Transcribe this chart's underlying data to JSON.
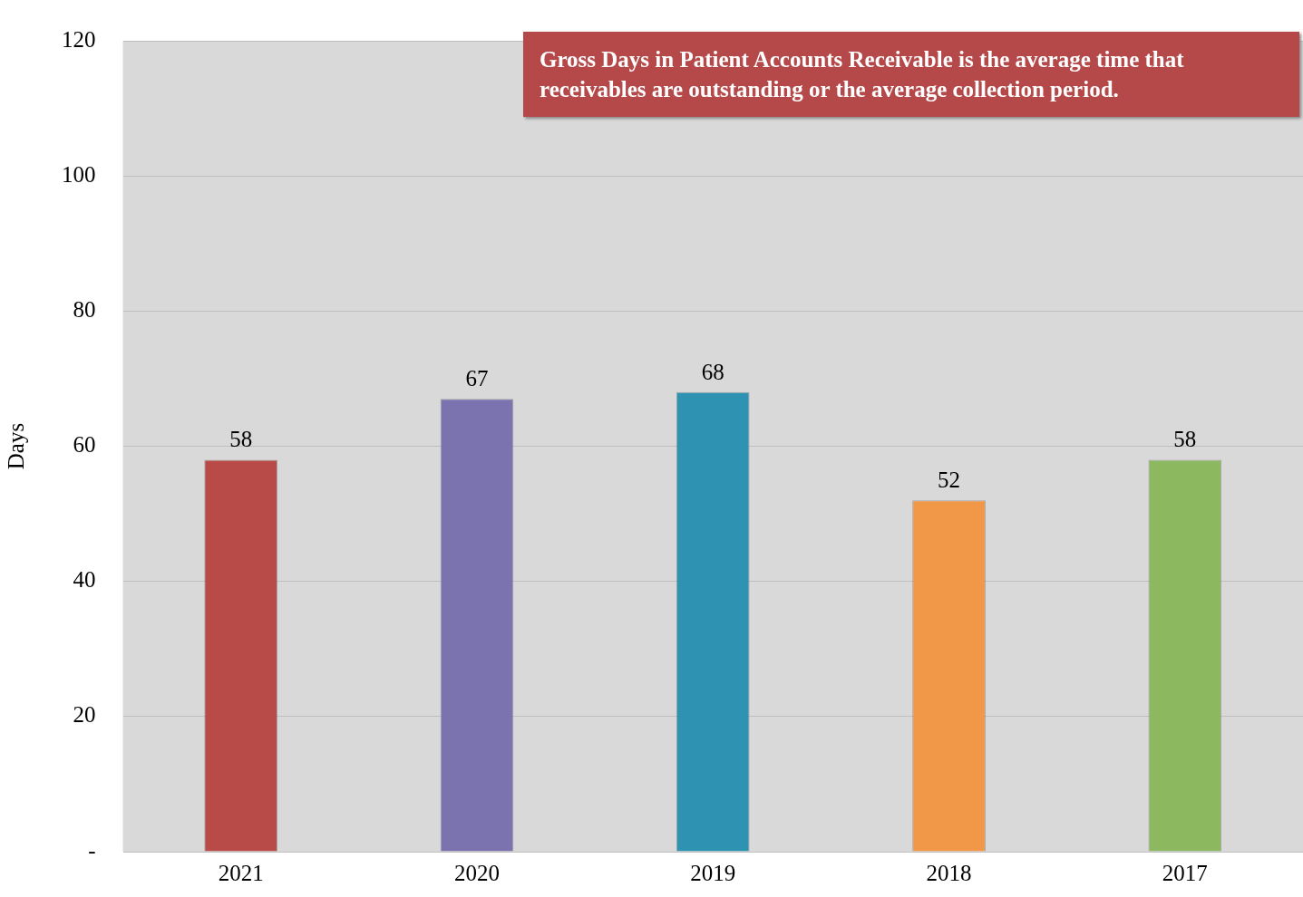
{
  "chart_data": {
    "type": "bar",
    "ylabel": "Days",
    "categories": [
      "2021",
      "2020",
      "2019",
      "2018",
      "2017"
    ],
    "values": [
      58,
      67,
      68,
      52,
      58
    ],
    "colors": [
      "#b84a47",
      "#7b73b0",
      "#2e93b2",
      "#f09848",
      "#8cb860"
    ],
    "ylim": [
      0,
      120
    ],
    "yticks": [
      {
        "value": 0,
        "label": "-"
      },
      20,
      40,
      60,
      80,
      100,
      120
    ],
    "grid": "y",
    "data_labels": true,
    "legend": false,
    "annotations": [
      "Gross Days in Patient Accounts Receivable is the average time that receivables are outstanding or the average collection period."
    ]
  }
}
